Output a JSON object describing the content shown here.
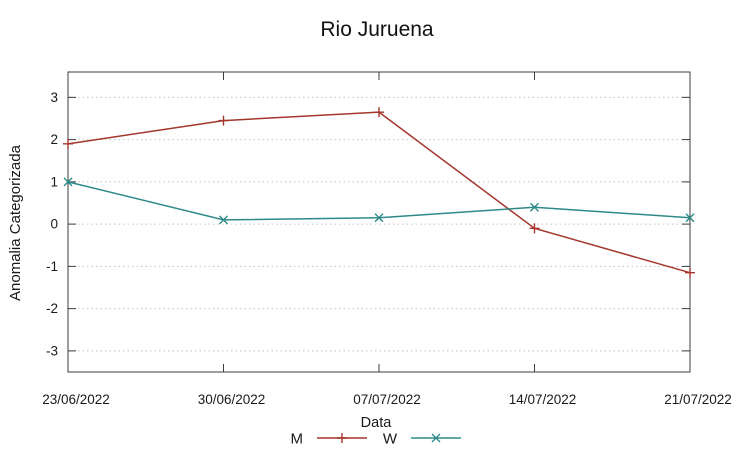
{
  "chart_data": {
    "type": "line",
    "title": "Rio Juruena",
    "xlabel": "Data",
    "ylabel": "Anomalia Categorizada",
    "categories": [
      "23/06/2022",
      "30/06/2022",
      "07/07/2022",
      "14/07/2022",
      "21/07/2022"
    ],
    "series": [
      {
        "name": "M",
        "marker": "plus",
        "color": "#a5352c",
        "values": [
          1.9,
          2.45,
          2.65,
          -0.1,
          -1.15
        ]
      },
      {
        "name": "W",
        "marker": "cross",
        "color": "#2d8a89",
        "values": [
          1.0,
          0.1,
          0.15,
          0.4,
          0.15
        ]
      }
    ],
    "yticks": [
      -3,
      -2,
      -1,
      0,
      1,
      2,
      3
    ],
    "ylim": [
      -3.5,
      3.6
    ],
    "grid": "horizontal-dotted",
    "legend_position": "bottom-center",
    "legend_entries": [
      "M",
      "W"
    ]
  },
  "colors": {
    "series_m": "#a5352c",
    "series_w": "#2d8a89",
    "grid": "#c3c3c3",
    "axis": "#3c3c3c",
    "text": "#1a1a1a"
  }
}
